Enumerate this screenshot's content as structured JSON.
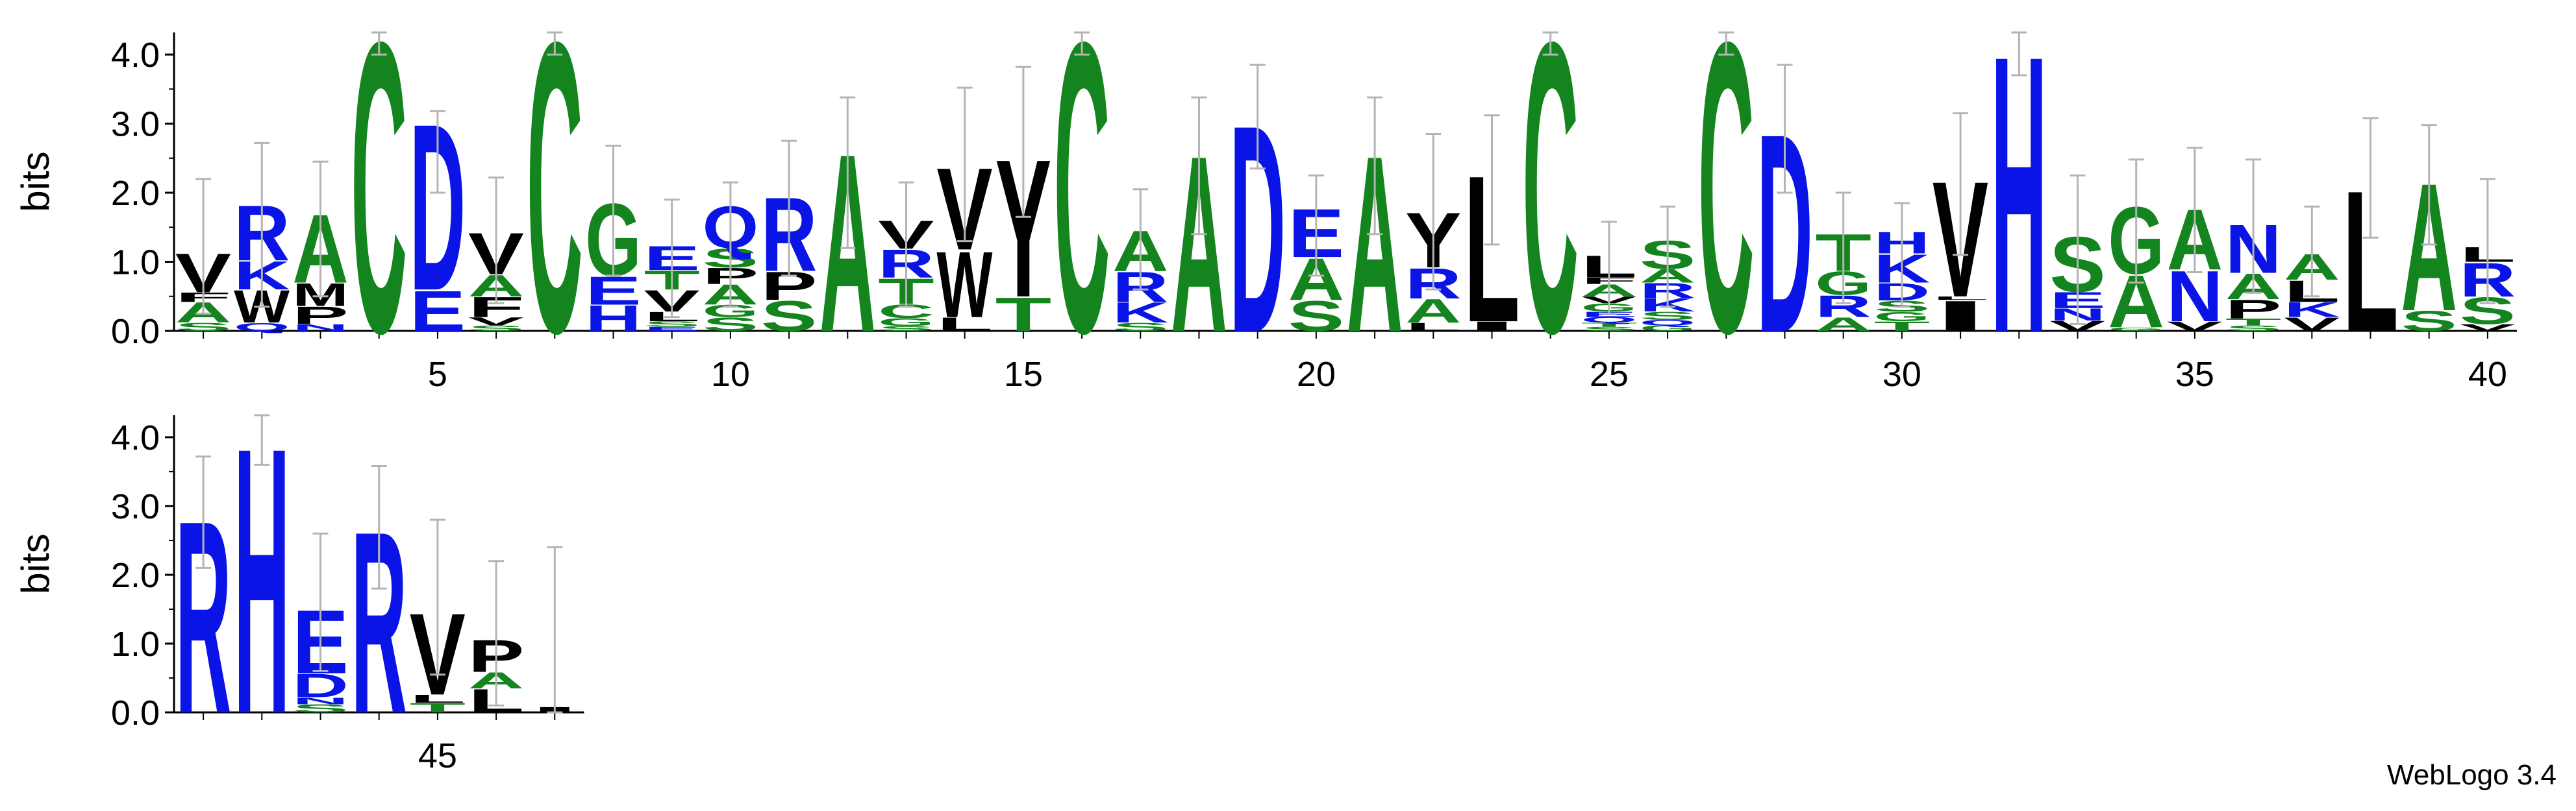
{
  "footer_text": "WebLogo 3.4",
  "colors": {
    "blue": "#0a14e6",
    "green": "#14841e",
    "black": "#000000",
    "errorbar": "#b4b4b4"
  },
  "color_of": {
    "A": "green",
    "G": "green",
    "S": "green",
    "T": "green",
    "C": "green",
    "D": "blue",
    "E": "blue",
    "R": "blue",
    "K": "blue",
    "H": "blue",
    "N": "blue",
    "Q": "blue",
    "V": "black",
    "L": "black",
    "I": "black",
    "M": "black",
    "F": "black",
    "W": "black",
    "Y": "black",
    "P": "black"
  },
  "chart_data": [
    {
      "type": "sequence_logo",
      "ylabel": "bits",
      "ylim": [
        0,
        4.32
      ],
      "yticks": [
        "0.0",
        "1.0",
        "2.0",
        "3.0",
        "4.0"
      ],
      "xticks": [
        5,
        10,
        15,
        20,
        25,
        30,
        35,
        40
      ],
      "positions": [
        {
          "pos": 1,
          "err": [
            0.25,
            2.2
          ],
          "stack": [
            [
              "S",
              0.12
            ],
            [
              "A",
              0.3
            ],
            [
              "F",
              0.14
            ],
            [
              "V",
              0.58
            ]
          ]
        },
        {
          "pos": 2,
          "err": [
            0.35,
            2.72
          ],
          "stack": [
            [
              "Q",
              0.12
            ],
            [
              "W",
              0.48
            ],
            [
              "K",
              0.42
            ],
            [
              "R",
              0.82
            ]
          ]
        },
        {
          "pos": 3,
          "err": [
            0.5,
            2.45
          ],
          "stack": [
            [
              "N",
              0.1
            ],
            [
              "P",
              0.26
            ],
            [
              "M",
              0.34
            ],
            [
              "A",
              1.02
            ]
          ]
        },
        {
          "pos": 4,
          "err": [
            4.0,
            4.32
          ],
          "stack": [
            [
              "C",
              4.32
            ]
          ]
        },
        {
          "pos": 5,
          "err": [
            2.0,
            3.18
          ],
          "stack": [
            [
              "E",
              0.6
            ],
            [
              "D",
              2.48
            ]
          ]
        },
        {
          "pos": 6,
          "err": [
            0.4,
            2.22
          ],
          "stack": [
            [
              "S",
              0.08
            ],
            [
              "V",
              0.12
            ],
            [
              "F",
              0.3
            ],
            [
              "A",
              0.32
            ],
            [
              "V",
              0.62
            ]
          ]
        },
        {
          "pos": 7,
          "err": [
            4.0,
            4.32
          ],
          "stack": [
            [
              "C",
              4.32
            ]
          ]
        },
        {
          "pos": 8,
          "err": [
            0.8,
            2.68
          ],
          "stack": [
            [
              "H",
              0.38
            ],
            [
              "E",
              0.42
            ],
            [
              "G",
              1.08
            ]
          ]
        },
        {
          "pos": 9,
          "err": [
            0.2,
            1.9
          ],
          "stack": [
            [
              "E",
              0.06
            ],
            [
              "S",
              0.08
            ],
            [
              "L",
              0.14
            ],
            [
              "V",
              0.32
            ],
            [
              "T",
              0.28
            ],
            [
              "E",
              0.36
            ]
          ]
        },
        {
          "pos": 10,
          "err": [
            0.35,
            2.15
          ],
          "stack": [
            [
              "S",
              0.2
            ],
            [
              "G",
              0.18
            ],
            [
              "A",
              0.3
            ],
            [
              "P",
              0.24
            ],
            [
              "S",
              0.28
            ],
            [
              "Q",
              0.62
            ]
          ]
        },
        {
          "pos": 11,
          "err": [
            0.8,
            2.75
          ],
          "stack": [
            [
              "S",
              0.45
            ],
            [
              "P",
              0.42
            ],
            [
              "R",
              1.1
            ]
          ]
        },
        {
          "pos": 12,
          "err": [
            1.2,
            3.38
          ],
          "stack": [
            [
              "A",
              2.65
            ]
          ]
        },
        {
          "pos": 13,
          "err": [
            0.35,
            2.15
          ],
          "stack": [
            [
              "S",
              0.07
            ],
            [
              "G",
              0.12
            ],
            [
              "C",
              0.2
            ],
            [
              "T",
              0.38
            ],
            [
              "R",
              0.42
            ],
            [
              "V",
              0.42
            ]
          ]
        },
        {
          "pos": 14,
          "err": [
            1.3,
            3.52
          ],
          "stack": [
            [
              "L",
              0.2
            ],
            [
              "W",
              0.98
            ],
            [
              "V",
              1.22
            ]
          ]
        },
        {
          "pos": 15,
          "err": [
            1.65,
            3.82
          ],
          "stack": [
            [
              "T",
              0.5
            ],
            [
              "Y",
              2.05
            ]
          ]
        },
        {
          "pos": 16,
          "err": [
            4.0,
            4.32
          ],
          "stack": [
            [
              "C",
              4.32
            ]
          ]
        },
        {
          "pos": 17,
          "err": [
            0.6,
            2.05
          ],
          "stack": [
            [
              "S",
              0.12
            ],
            [
              "K",
              0.3
            ],
            [
              "R",
              0.45
            ],
            [
              "A",
              0.6
            ]
          ]
        },
        {
          "pos": 18,
          "err": [
            1.4,
            3.38
          ],
          "stack": [
            [
              "A",
              2.62
            ]
          ]
        },
        {
          "pos": 19,
          "err": [
            2.35,
            3.85
          ],
          "stack": [
            [
              "D",
              3.08
            ]
          ]
        },
        {
          "pos": 20,
          "err": [
            0.8,
            2.25
          ],
          "stack": [
            [
              "S",
              0.45
            ],
            [
              "A",
              0.62
            ],
            [
              "E",
              0.72
            ]
          ]
        },
        {
          "pos": 21,
          "err": [
            1.4,
            3.38
          ],
          "stack": [
            [
              "A",
              2.62
            ]
          ]
        },
        {
          "pos": 22,
          "err": [
            0.6,
            2.85
          ],
          "stack": [
            [
              "L",
              0.12
            ],
            [
              "A",
              0.35
            ],
            [
              "R",
              0.45
            ],
            [
              "Y",
              0.82
            ]
          ]
        },
        {
          "pos": 23,
          "err": [
            1.25,
            3.12
          ],
          "stack": [
            [
              "I",
              0.14
            ],
            [
              "L",
              2.18
            ]
          ]
        },
        {
          "pos": 24,
          "err": [
            4.0,
            4.32
          ],
          "stack": [
            [
              "C",
              4.32
            ]
          ]
        },
        {
          "pos": 25,
          "err": [
            0.25,
            1.58
          ],
          "stack": [
            [
              "S",
              0.06
            ],
            [
              "T",
              0.06
            ],
            [
              "Q",
              0.08
            ],
            [
              "E",
              0.08
            ],
            [
              "G",
              0.12
            ],
            [
              "V",
              0.1
            ],
            [
              "A",
              0.18
            ],
            [
              "F",
              0.1
            ],
            [
              "L",
              0.32
            ]
          ]
        },
        {
          "pos": 26,
          "err": [
            0.35,
            1.8
          ],
          "stack": [
            [
              "G",
              0.08
            ],
            [
              "Q",
              0.08
            ],
            [
              "S",
              0.12
            ],
            [
              "K",
              0.2
            ],
            [
              "R",
              0.22
            ],
            [
              "A",
              0.2
            ],
            [
              "S",
              0.42
            ]
          ]
        },
        {
          "pos": 27,
          "err": [
            4.0,
            4.32
          ],
          "stack": [
            [
              "C",
              4.32
            ]
          ]
        },
        {
          "pos": 28,
          "err": [
            2.0,
            3.85
          ],
          "stack": [
            [
              "D",
              2.95
            ]
          ]
        },
        {
          "pos": 29,
          "err": [
            0.4,
            2.0
          ],
          "stack": [
            [
              "A",
              0.2
            ],
            [
              "R",
              0.32
            ],
            [
              "G",
              0.35
            ],
            [
              "T",
              0.55
            ]
          ]
        },
        {
          "pos": 30,
          "err": [
            0.35,
            1.85
          ],
          "stack": [
            [
              "T",
              0.14
            ],
            [
              "G",
              0.14
            ],
            [
              "S",
              0.16
            ],
            [
              "D",
              0.26
            ],
            [
              "K",
              0.42
            ],
            [
              "H",
              0.32
            ]
          ]
        },
        {
          "pos": 31,
          "err": [
            1.1,
            3.15
          ],
          "stack": [
            [
              "I",
              0.45
            ],
            [
              "L",
              0.05
            ],
            [
              "V",
              1.72
            ]
          ]
        },
        {
          "pos": 32,
          "err": [
            3.7,
            4.32
          ],
          "stack": [
            [
              "H",
              4.12
            ]
          ]
        },
        {
          "pos": 33,
          "err": [
            0.1,
            2.25
          ],
          "stack": [
            [
              "V",
              0.15
            ],
            [
              "N",
              0.18
            ],
            [
              "E",
              0.24
            ],
            [
              "S",
              0.82
            ]
          ]
        },
        {
          "pos": 34,
          "err": [
            0.7,
            2.48
          ],
          "stack": [
            [
              "G",
              0.05
            ],
            [
              "A",
              0.78
            ],
            [
              "G",
              1.0
            ]
          ]
        },
        {
          "pos": 35,
          "err": [
            0.85,
            2.65
          ],
          "stack": [
            [
              "V",
              0.14
            ],
            [
              "N",
              0.75
            ],
            [
              "A",
              0.9
            ]
          ]
        },
        {
          "pos": 36,
          "err": [
            0.55,
            2.48
          ],
          "stack": [
            [
              "S",
              0.08
            ],
            [
              "T",
              0.1
            ],
            [
              "P",
              0.28
            ],
            [
              "A",
              0.38
            ],
            [
              "N",
              0.72
            ]
          ]
        },
        {
          "pos": 37,
          "err": [
            0.5,
            1.8
          ],
          "stack": [
            [
              "V",
              0.2
            ],
            [
              "K",
              0.22
            ],
            [
              "L",
              0.32
            ],
            [
              "A",
              0.38
            ]
          ]
        },
        {
          "pos": 38,
          "err": [
            1.35,
            3.08
          ],
          "stack": [
            [
              "L",
              2.1
            ]
          ]
        },
        {
          "pos": 39,
          "err": [
            1.25,
            2.98
          ],
          "stack": [
            [
              "S",
              0.3
            ],
            [
              "A",
              1.9
            ]
          ]
        },
        {
          "pos": 40,
          "err": [
            0.4,
            2.2
          ],
          "stack": [
            [
              "V",
              0.1
            ],
            [
              "S",
              0.4
            ],
            [
              "R",
              0.5
            ],
            [
              "L",
              0.22
            ]
          ]
        }
      ]
    },
    {
      "type": "sequence_logo",
      "ylabel": "bits",
      "ylim": [
        0,
        4.32
      ],
      "yticks": [
        "0.0",
        "1.0",
        "2.0",
        "3.0",
        "4.0"
      ],
      "xticks": [
        45
      ],
      "positions": [
        {
          "pos": 41,
          "err": [
            2.1,
            3.72
          ],
          "stack": [
            [
              "R",
              2.88
            ]
          ]
        },
        {
          "pos": 42,
          "err": [
            3.6,
            4.32
          ],
          "stack": [
            [
              "H",
              3.98
            ]
          ]
        },
        {
          "pos": 43,
          "err": [
            0.6,
            2.6
          ],
          "stack": [
            [
              "S",
              0.12
            ],
            [
              "N",
              0.1
            ],
            [
              "D",
              0.35
            ],
            [
              "E",
              0.95
            ]
          ]
        },
        {
          "pos": 44,
          "err": [
            1.8,
            3.58
          ],
          "stack": [
            [
              "R",
              2.72
            ]
          ]
        },
        {
          "pos": 45,
          "err": [
            0.55,
            2.8
          ],
          "stack": [
            [
              "T",
              0.14
            ],
            [
              "L",
              0.12
            ],
            [
              "V",
              1.22
            ]
          ]
        },
        {
          "pos": 46,
          "err": [
            0.1,
            2.2
          ],
          "stack": [
            [
              "L",
              0.35
            ],
            [
              "A",
              0.24
            ],
            [
              "P",
              0.48
            ]
          ]
        },
        {
          "pos": 47,
          "err": [
            0.0,
            2.4
          ],
          "stack": [
            [
              "I",
              0.08
            ]
          ]
        }
      ]
    }
  ]
}
